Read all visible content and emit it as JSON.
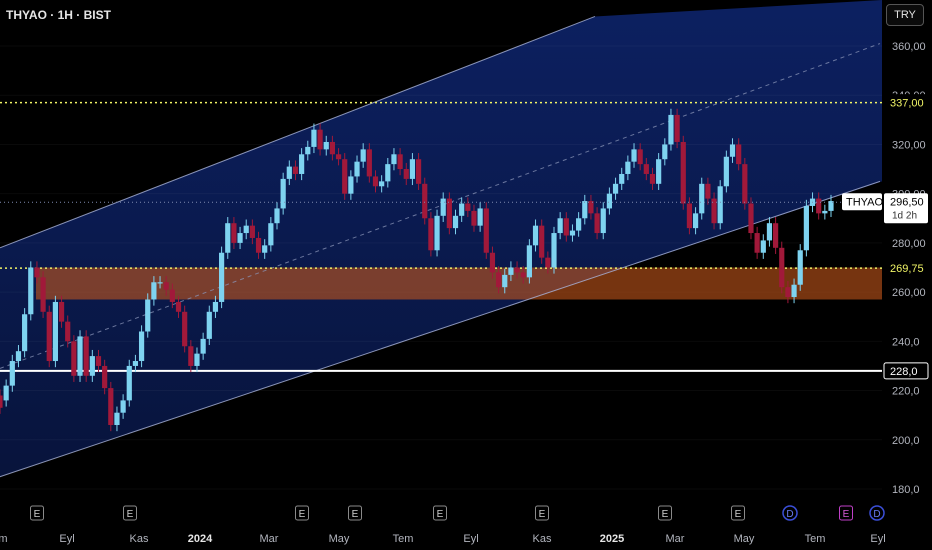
{
  "header": {
    "title": "THYAO · 1H · BIST",
    "currency_button": "TRY"
  },
  "chart_data": {
    "type": "candlestick",
    "symbol": "THYAO",
    "ylim": [
      176,
      372
    ],
    "yticks": [
      "360,00",
      "340,00",
      "320,00",
      "300,00",
      "280,00",
      "260,00",
      "240,0",
      "220,0",
      "200,0",
      "180,0"
    ],
    "ytick_values": [
      360,
      340,
      320,
      300,
      280,
      260,
      240,
      220,
      200,
      180
    ],
    "xticks": [
      {
        "label": "m",
        "bold": false
      },
      {
        "label": "Eyl",
        "bold": false
      },
      {
        "label": "Kas",
        "bold": false
      },
      {
        "label": "2024",
        "bold": true
      },
      {
        "label": "Mar",
        "bold": false
      },
      {
        "label": "May",
        "bold": false
      },
      {
        "label": "Tem",
        "bold": false
      },
      {
        "label": "Eyl",
        "bold": false
      },
      {
        "label": "Kas",
        "bold": false
      },
      {
        "label": "2025",
        "bold": true
      },
      {
        "label": "Mar",
        "bold": false
      },
      {
        "label": "May",
        "bold": false
      },
      {
        "label": "Tem",
        "bold": false
      },
      {
        "label": "Eyl",
        "bold": false
      }
    ],
    "price_labels": [
      {
        "value": 337.0,
        "text": "337,00",
        "color": "#f0f466",
        "style": "dotted"
      },
      {
        "value": 269.75,
        "text": "269,75",
        "color": "#f0f466",
        "style": "dotted"
      },
      {
        "value": 228.0,
        "text": "228,0",
        "color": "#ffffff",
        "style": "solid"
      }
    ],
    "last_price": {
      "value": 296.5,
      "text": "296,50",
      "countdown": "1d 2h",
      "symbol_label": "THYAO"
    },
    "zone": {
      "low": 257,
      "high": 270,
      "color": "#c4561a"
    },
    "channel": {
      "upper": [
        [
          0,
          278
        ],
        [
          595,
          372
        ]
      ],
      "lower": [
        [
          0,
          185
        ],
        [
          880,
          305
        ]
      ],
      "mid": [
        [
          0,
          229
        ],
        [
          880,
          361
        ]
      ]
    },
    "events": [
      {
        "label": "E",
        "type": "earnings"
      },
      {
        "label": "E",
        "type": "earnings"
      },
      {
        "label": "E",
        "type": "earnings"
      },
      {
        "label": "E",
        "type": "earnings"
      },
      {
        "label": "E",
        "type": "earnings"
      },
      {
        "label": "E",
        "type": "earnings"
      },
      {
        "label": "E",
        "type": "earnings"
      },
      {
        "label": "E",
        "type": "earnings"
      },
      {
        "label": "D",
        "type": "dividend"
      },
      {
        "label": "E",
        "type": "earnings-future"
      },
      {
        "label": "D",
        "type": "dividend"
      }
    ],
    "candles": [
      [
        218,
        213
      ],
      [
        216,
        222
      ],
      [
        222,
        232
      ],
      [
        232,
        236
      ],
      [
        236,
        251
      ],
      [
        251,
        270
      ],
      [
        270,
        266
      ],
      [
        266,
        252
      ],
      [
        252,
        232
      ],
      [
        232,
        256
      ],
      [
        256,
        248
      ],
      [
        248,
        240
      ],
      [
        240,
        226
      ],
      [
        226,
        242
      ],
      [
        242,
        226
      ],
      [
        226,
        234
      ],
      [
        234,
        230
      ],
      [
        230,
        221
      ],
      [
        221,
        206
      ],
      [
        206,
        211
      ],
      [
        211,
        216
      ],
      [
        216,
        230
      ],
      [
        230,
        232
      ],
      [
        232,
        244
      ],
      [
        244,
        257
      ],
      [
        257,
        264
      ],
      [
        264,
        264
      ],
      [
        264,
        261
      ],
      [
        261,
        256
      ],
      [
        256,
        252
      ],
      [
        252,
        238
      ],
      [
        238,
        230
      ],
      [
        230,
        235
      ],
      [
        235,
        241
      ],
      [
        241,
        252
      ],
      [
        252,
        256
      ],
      [
        256,
        276
      ],
      [
        276,
        288
      ],
      [
        288,
        280
      ],
      [
        280,
        284
      ],
      [
        284,
        287
      ],
      [
        287,
        282
      ],
      [
        282,
        276
      ],
      [
        276,
        279
      ],
      [
        279,
        288
      ],
      [
        288,
        294
      ],
      [
        294,
        306
      ],
      [
        306,
        311
      ],
      [
        311,
        308
      ],
      [
        308,
        316
      ],
      [
        316,
        319
      ],
      [
        319,
        326
      ],
      [
        326,
        318
      ],
      [
        318,
        321
      ],
      [
        321,
        316
      ],
      [
        316,
        314
      ],
      [
        314,
        300
      ],
      [
        300,
        307
      ],
      [
        307,
        313
      ],
      [
        313,
        318
      ],
      [
        318,
        307
      ],
      [
        307,
        303
      ],
      [
        303,
        305
      ],
      [
        305,
        312
      ],
      [
        312,
        316
      ],
      [
        316,
        310
      ],
      [
        310,
        306
      ],
      [
        306,
        314
      ],
      [
        314,
        304
      ],
      [
        304,
        290
      ],
      [
        290,
        277
      ],
      [
        277,
        291
      ],
      [
        291,
        298
      ],
      [
        298,
        286
      ],
      [
        286,
        291
      ],
      [
        291,
        296
      ],
      [
        296,
        293
      ],
      [
        293,
        287
      ],
      [
        287,
        294
      ],
      [
        294,
        276
      ],
      [
        276,
        268
      ],
      [
        268,
        262
      ],
      [
        262,
        267
      ],
      [
        267,
        270
      ],
      [
        270,
        268
      ],
      [
        268,
        266
      ],
      [
        266,
        279
      ],
      [
        279,
        287
      ],
      [
        287,
        274
      ],
      [
        274,
        270
      ],
      [
        270,
        284
      ],
      [
        284,
        290
      ],
      [
        290,
        283
      ],
      [
        283,
        285
      ],
      [
        285,
        290
      ],
      [
        290,
        297
      ],
      [
        297,
        292
      ],
      [
        292,
        284
      ],
      [
        284,
        294
      ],
      [
        294,
        300
      ],
      [
        300,
        304
      ],
      [
        304,
        308
      ],
      [
        308,
        313
      ],
      [
        313,
        318
      ],
      [
        318,
        312
      ],
      [
        312,
        308
      ],
      [
        308,
        304
      ],
      [
        304,
        314
      ],
      [
        314,
        320
      ],
      [
        320,
        332
      ],
      [
        332,
        321
      ],
      [
        321,
        296
      ],
      [
        296,
        286
      ],
      [
        286,
        292
      ],
      [
        292,
        304
      ],
      [
        304,
        298
      ],
      [
        298,
        288
      ],
      [
        288,
        303
      ],
      [
        303,
        315
      ],
      [
        315,
        320
      ],
      [
        320,
        312
      ],
      [
        312,
        296
      ],
      [
        296,
        284
      ],
      [
        284,
        276
      ],
      [
        276,
        281
      ],
      [
        281,
        288
      ],
      [
        288,
        278
      ],
      [
        278,
        262
      ],
      [
        262,
        258
      ],
      [
        258,
        263
      ],
      [
        263,
        277
      ],
      [
        277,
        295
      ],
      [
        295,
        298
      ],
      [
        298,
        292
      ],
      [
        292,
        293
      ],
      [
        293,
        297
      ]
    ]
  }
}
